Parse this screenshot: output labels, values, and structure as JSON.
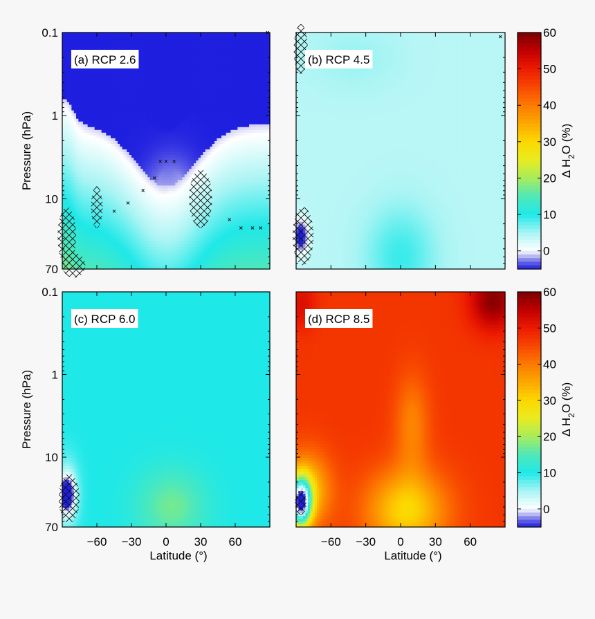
{
  "figure": {
    "background": "#f7f7f7"
  },
  "chart_data": [
    {
      "type": "heatmap",
      "panel_label": "(a) RCP 2.6",
      "xlabel": "",
      "ylabel": "Pressure (hPa)",
      "x_range": [
        -90,
        90
      ],
      "y_range_hPa": [
        0.1,
        70
      ],
      "y_scale": "log",
      "y_ticks": [
        "0.1",
        "1",
        "10",
        "70"
      ],
      "x_ticks": [
        "-60",
        "-30",
        "0",
        "30",
        "60"
      ],
      "x_tick_labels_shown": false,
      "base_value": -5,
      "blobs": [
        {
          "lat": 0,
          "log_p": 1.85,
          "sx": 32,
          "sy": 0.55,
          "amp": 8
        },
        {
          "lat": 5,
          "log_p": 1.1,
          "sx": 22,
          "sy": 0.5,
          "amp": 5
        },
        {
          "lat": -86,
          "log_p": 1.45,
          "sx": 6,
          "sy": 0.18,
          "amp": -6
        }
      ],
      "vertical_profile": {
        "top_log_p": -1,
        "value": -6
      },
      "hatch": [
        [
          -86,
          1.45,
          8,
          0.35
        ],
        [
          -80,
          1.8,
          10,
          0.15
        ],
        [
          30,
          1.0,
          10,
          0.35
        ],
        [
          -60,
          1.1,
          5,
          0.25
        ]
      ],
      "stipple": [
        [
          -5,
          0.55
        ],
        [
          0,
          0.55
        ],
        [
          7,
          0.55
        ],
        [
          -10,
          0.75
        ],
        [
          -20,
          0.9
        ],
        [
          -33,
          1.05
        ],
        [
          -45,
          1.15
        ],
        [
          55,
          1.25
        ],
        [
          65,
          1.35
        ],
        [
          75,
          1.35
        ],
        [
          82,
          1.35
        ],
        [
          88,
          -1
        ]
      ]
    },
    {
      "type": "heatmap",
      "panel_label": "(b) RCP 4.5",
      "xlabel": "",
      "ylabel": "",
      "x_range": [
        -90,
        90
      ],
      "y_range_hPa": [
        0.1,
        70
      ],
      "y_scale": "log",
      "x_ticks": [
        "-60",
        "-30",
        "0",
        "30",
        "60"
      ],
      "x_tick_labels_shown": false,
      "base_value": 4,
      "blobs": [
        {
          "lat": 0,
          "log_p": 1.7,
          "sx": 30,
          "sy": 0.6,
          "amp": 5
        },
        {
          "lat": -40,
          "log_p": -0.7,
          "sx": 40,
          "sy": 0.4,
          "amp": 1.5
        },
        {
          "lat": -86,
          "log_p": 1.45,
          "sx": 6,
          "sy": 0.2,
          "amp": -11
        }
      ],
      "hatch": [
        [
          -86,
          -0.8,
          6,
          0.3
        ],
        [
          -84,
          1.45,
          9,
          0.35
        ]
      ],
      "stipple": [
        [
          86,
          -0.95
        ]
      ]
    },
    {
      "type": "heatmap",
      "panel_label": "(c) RCP 6.0",
      "xlabel": "Latitude (°)",
      "ylabel": "Pressure (hPa)",
      "x_range": [
        -90,
        90
      ],
      "y_range_hPa": [
        0.1,
        70
      ],
      "y_scale": "log",
      "y_ticks": [
        "0.1",
        "1",
        "10",
        "70"
      ],
      "x_ticks": [
        "-60",
        "-30",
        "0",
        "30",
        "60"
      ],
      "x_tick_labels_shown": true,
      "base_value": 10,
      "blobs": [
        {
          "lat": 5,
          "log_p": 1.6,
          "sx": 30,
          "sy": 0.45,
          "amp": 7
        },
        {
          "lat": -86,
          "log_p": 1.45,
          "sx": 6,
          "sy": 0.2,
          "amp": -14
        },
        {
          "lat": -86,
          "log_p": 1.45,
          "sx": 10,
          "sy": 0.4,
          "amp": -8
        }
      ],
      "hatch": [
        [
          -84,
          1.5,
          9,
          0.3
        ]
      ],
      "stipple": []
    },
    {
      "type": "heatmap",
      "panel_label": "(d) RCP 8.5",
      "xlabel": "Latitude (°)",
      "ylabel": "",
      "x_range": [
        -90,
        90
      ],
      "y_range_hPa": [
        0.1,
        70
      ],
      "y_scale": "log",
      "x_ticks": [
        "-60",
        "-30",
        "0",
        "30",
        "60"
      ],
      "x_tick_labels_shown": true,
      "base_value": 47,
      "blobs": [
        {
          "lat": 5,
          "log_p": 1.65,
          "sx": 35,
          "sy": 0.5,
          "amp": -17
        },
        {
          "lat": 10,
          "log_p": 0.6,
          "sx": 15,
          "sy": 0.6,
          "amp": -8
        },
        {
          "lat": 80,
          "log_p": -0.9,
          "sx": 20,
          "sy": 0.35,
          "amp": 12
        },
        {
          "lat": -85,
          "log_p": -0.85,
          "sx": 12,
          "sy": 0.3,
          "amp": 5
        },
        {
          "lat": -86,
          "log_p": 1.55,
          "sx": 9,
          "sy": 0.3,
          "amp": -45
        },
        {
          "lat": -80,
          "log_p": 1.4,
          "sx": 20,
          "sy": 0.45,
          "amp": -15
        }
      ],
      "hatch": [
        [
          -86,
          1.55,
          5,
          0.15
        ]
      ],
      "stipple": []
    }
  ],
  "colorbars": [
    {
      "label": "Δ H₂O (%)",
      "label_text": "Δ H",
      "label_sub": "2",
      "label_tail": "O (%)",
      "ticks": [
        "60",
        "50",
        "40",
        "30",
        "20",
        "10",
        "0"
      ],
      "range": [
        -5,
        60
      ]
    },
    {
      "label": "Δ H₂O (%)",
      "label_text": "Δ H",
      "label_sub": "2",
      "label_tail": "O (%)",
      "ticks": [
        "60",
        "50",
        "40",
        "30",
        "20",
        "10",
        "0"
      ],
      "range": [
        -5,
        60
      ]
    }
  ],
  "colorscale": [
    {
      "v": -5,
      "c": "#1f1fe0"
    },
    {
      "v": -3,
      "c": "#6a6ae8"
    },
    {
      "v": -1.5,
      "c": "#b8b8f2"
    },
    {
      "v": 0,
      "c": "#ffffff"
    },
    {
      "v": 5,
      "c": "#a8f4f4"
    },
    {
      "v": 10,
      "c": "#1fe8e8"
    },
    {
      "v": 15,
      "c": "#50e8b8"
    },
    {
      "v": 20,
      "c": "#a8ec5c"
    },
    {
      "v": 25,
      "c": "#e8ec20"
    },
    {
      "v": 30,
      "c": "#fcd800"
    },
    {
      "v": 35,
      "c": "#fca800"
    },
    {
      "v": 40,
      "c": "#fc7a00"
    },
    {
      "v": 45,
      "c": "#f84800"
    },
    {
      "v": 50,
      "c": "#ec1a00"
    },
    {
      "v": 55,
      "c": "#c00000"
    },
    {
      "v": 60,
      "c": "#7a0000"
    }
  ]
}
